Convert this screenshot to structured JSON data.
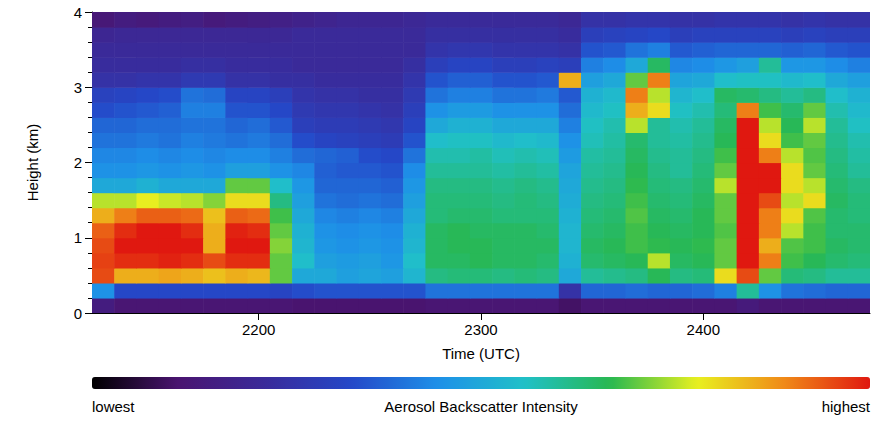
{
  "chart_data": {
    "type": "heatmap",
    "x_label": "Time (UTC)",
    "y_label": "Height (km)",
    "x": [
      2130,
      2140,
      2150,
      2160,
      2170,
      2180,
      2190,
      2200,
      2210,
      2220,
      2230,
      2240,
      2250,
      2260,
      2270,
      2280,
      2290,
      2300,
      2310,
      2320,
      2330,
      2340,
      2350,
      2360,
      2370,
      2380,
      2390,
      2400,
      2410,
      2420,
      2430,
      2440,
      2450,
      2460,
      2470
    ],
    "y": [
      0.1,
      0.3,
      0.5,
      0.7,
      0.9,
      1.1,
      1.3,
      1.5,
      1.7,
      1.9,
      2.1,
      2.3,
      2.5,
      2.7,
      2.9,
      3.1,
      3.3,
      3.5,
      3.7,
      3.9
    ],
    "values": [
      [
        1.5,
        1.2,
        1.2,
        1.2,
        1.2,
        1.2,
        1.2,
        1.2,
        1.2,
        1.1,
        1.1,
        1.1,
        1.1,
        1.1,
        1.1,
        1.2,
        1.2,
        1.2,
        1.2,
        1.2,
        1.2,
        1.0,
        1.2,
        1.2,
        1.2,
        1.2,
        1.2,
        1.2,
        1.2,
        1.4,
        1.2,
        1.2,
        1.2,
        1.2,
        1.2
      ],
      [
        4.5,
        3.3,
        3.3,
        3.3,
        3.3,
        3.3,
        3.3,
        3.3,
        3.2,
        3.4,
        3.5,
        3.5,
        3.5,
        3.5,
        3.5,
        4.0,
        4.0,
        4.0,
        4.0,
        4.0,
        4.0,
        2.5,
        3.8,
        3.8,
        3.9,
        3.8,
        3.8,
        3.9,
        4.2,
        6.0,
        4.5,
        4.0,
        3.9,
        3.8,
        3.8
      ],
      [
        9.5,
        8.5,
        8.5,
        8.6,
        8.5,
        8.3,
        8.5,
        8.4,
        7.0,
        5.0,
        5.0,
        4.8,
        4.9,
        4.8,
        5.3,
        6.2,
        6.3,
        6.3,
        6.2,
        6.3,
        6.2,
        5.0,
        6.0,
        6.1,
        6.2,
        6.6,
        6.2,
        6.3,
        8.0,
        9.5,
        7.0,
        6.3,
        6.2,
        6.0,
        6.0
      ],
      [
        9.6,
        9.8,
        9.8,
        9.9,
        9.8,
        9.5,
        9.8,
        9.8,
        7.0,
        5.5,
        4.8,
        4.7,
        4.8,
        4.6,
        5.5,
        6.5,
        6.5,
        6.6,
        6.5,
        6.5,
        6.4,
        5.2,
        6.4,
        6.5,
        6.6,
        7.5,
        6.5,
        6.6,
        7.0,
        10,
        9.0,
        6.8,
        6.6,
        6.4,
        6.3
      ],
      [
        9.5,
        10,
        10,
        10,
        10,
        8.5,
        10,
        10,
        7.2,
        5.3,
        4.6,
        4.5,
        4.6,
        4.5,
        5.3,
        6.5,
        6.6,
        6.6,
        6.5,
        6.5,
        6.5,
        5.3,
        6.5,
        6.6,
        6.8,
        6.7,
        6.6,
        6.7,
        7.0,
        10,
        8.5,
        6.9,
        6.8,
        6.5,
        6.4
      ],
      [
        9.3,
        9.8,
        10,
        10,
        9.8,
        8.5,
        9.9,
        9.8,
        7.0,
        5.2,
        4.5,
        4.4,
        4.5,
        4.4,
        5.2,
        6.5,
        6.6,
        6.5,
        6.5,
        6.5,
        6.4,
        5.3,
        6.4,
        6.5,
        6.8,
        6.6,
        6.5,
        6.6,
        6.9,
        10,
        9.0,
        7.5,
        6.8,
        6.4,
        6.4
      ],
      [
        8.5,
        9.0,
        9.3,
        9.3,
        9.2,
        8.3,
        9.3,
        9.2,
        6.8,
        5.0,
        4.3,
        4.2,
        4.3,
        4.2,
        5.0,
        6.3,
        6.4,
        6.4,
        6.3,
        6.3,
        6.3,
        5.2,
        6.3,
        6.4,
        6.9,
        6.5,
        6.4,
        6.6,
        7.0,
        10,
        9.0,
        8.0,
        6.9,
        6.4,
        6.3
      ],
      [
        7.5,
        7.5,
        7.8,
        7.6,
        7.5,
        7.2,
        8.0,
        8.0,
        6.2,
        4.8,
        4.0,
        3.9,
        4.0,
        3.9,
        4.8,
        6.3,
        6.3,
        6.3,
        6.2,
        6.3,
        6.2,
        5.1,
        6.2,
        6.3,
        6.8,
        6.4,
        6.3,
        6.5,
        7.0,
        10,
        9.5,
        7.5,
        8.0,
        6.5,
        6.3
      ],
      [
        5.0,
        5.0,
        5.2,
        5.0,
        5.0,
        5.0,
        7.0,
        7.0,
        5.5,
        4.6,
        3.8,
        3.8,
        3.8,
        3.7,
        4.6,
        6.2,
        6.2,
        6.2,
        6.1,
        6.2,
        6.1,
        5.0,
        6.1,
        6.2,
        6.7,
        6.3,
        6.2,
        6.4,
        7.5,
        10,
        10,
        8.0,
        7.5,
        6.4,
        6.2
      ],
      [
        4.5,
        4.5,
        4.6,
        4.5,
        4.6,
        4.5,
        4.8,
        4.8,
        4.5,
        4.3,
        3.7,
        3.6,
        3.6,
        3.5,
        4.4,
        6.0,
        6.0,
        6.0,
        5.9,
        6.0,
        5.9,
        4.9,
        6.0,
        6.1,
        6.6,
        6.2,
        6.0,
        6.3,
        7.0,
        10,
        10,
        8.0,
        7.0,
        6.3,
        6.0
      ],
      [
        4.3,
        4.3,
        4.4,
        4.3,
        4.4,
        4.3,
        4.4,
        4.4,
        4.2,
        3.9,
        3.8,
        3.7,
        3.4,
        3.3,
        4.0,
        5.8,
        5.8,
        5.9,
        5.7,
        5.8,
        5.7,
        4.7,
        5.9,
        6.0,
        6.5,
        6.1,
        6.0,
        6.2,
        6.8,
        10,
        9.0,
        7.5,
        6.9,
        6.2,
        5.9
      ],
      [
        4.0,
        4.0,
        4.1,
        4.0,
        4.2,
        4.1,
        4.0,
        4.1,
        3.9,
        3.4,
        3.2,
        3.1,
        3.0,
        2.9,
        3.5,
        5.5,
        5.6,
        5.6,
        5.4,
        5.5,
        5.4,
        4.5,
        5.7,
        5.9,
        6.4,
        6.0,
        5.9,
        6.1,
        6.6,
        10,
        8.0,
        6.8,
        7.0,
        6.1,
        5.8
      ],
      [
        3.8,
        3.8,
        3.9,
        3.9,
        4.0,
        4.0,
        3.8,
        3.9,
        3.6,
        3.0,
        2.9,
        2.9,
        2.8,
        2.7,
        3.2,
        5.0,
        5.2,
        5.2,
        5.0,
        5.0,
        5.0,
        4.2,
        5.6,
        5.8,
        7.5,
        6.0,
        5.8,
        6.0,
        6.5,
        10,
        7.5,
        6.6,
        7.5,
        6.0,
        5.6
      ],
      [
        3.4,
        3.5,
        3.6,
        3.7,
        4.2,
        4.2,
        3.5,
        3.5,
        3.3,
        2.8,
        2.7,
        2.7,
        2.6,
        2.5,
        3.0,
        4.5,
        4.7,
        4.7,
        4.5,
        4.5,
        4.5,
        3.9,
        5.4,
        5.6,
        8.5,
        8.0,
        5.6,
        5.8,
        6.3,
        9.0,
        6.8,
        6.4,
        7.0,
        5.8,
        5.4
      ],
      [
        3.1,
        3.2,
        3.3,
        3.4,
        4.0,
        3.9,
        3.2,
        3.2,
        3.0,
        2.6,
        2.5,
        2.5,
        2.4,
        2.4,
        2.8,
        4.0,
        4.2,
        4.2,
        4.0,
        4.0,
        4.1,
        3.6,
        5.2,
        5.4,
        9.0,
        7.5,
        5.3,
        5.5,
        6.5,
        6.4,
        6.2,
        6.0,
        6.2,
        5.5,
        5.2
      ],
      [
        2.5,
        2.5,
        2.6,
        2.6,
        2.8,
        2.8,
        2.5,
        2.5,
        2.4,
        2.4,
        2.3,
        2.3,
        2.3,
        2.3,
        2.6,
        3.5,
        3.7,
        3.7,
        3.5,
        3.5,
        3.6,
        8.5,
        4.8,
        5.0,
        7.0,
        9.0,
        4.9,
        5.0,
        5.5,
        5.6,
        5.6,
        5.4,
        5.5,
        5.0,
        4.8
      ],
      [
        2.3,
        2.3,
        2.3,
        2.3,
        2.4,
        2.4,
        2.3,
        2.3,
        2.3,
        2.2,
        2.2,
        2.2,
        2.2,
        2.2,
        2.4,
        3.0,
        3.2,
        3.2,
        3.0,
        3.0,
        3.1,
        3.0,
        4.2,
        4.4,
        5.0,
        6.5,
        4.3,
        4.4,
        4.6,
        4.8,
        6.0,
        4.6,
        4.6,
        4.4,
        4.2
      ],
      [
        2.2,
        2.2,
        2.2,
        2.2,
        2.2,
        2.2,
        2.2,
        2.2,
        2.2,
        2.2,
        2.2,
        2.2,
        2.2,
        2.2,
        2.2,
        2.6,
        2.7,
        2.7,
        2.6,
        2.6,
        2.6,
        2.5,
        3.5,
        3.6,
        4.0,
        4.2,
        3.6,
        3.7,
        3.8,
        3.8,
        3.8,
        3.7,
        3.8,
        3.6,
        3.5
      ],
      [
        2.0,
        2.1,
        2.1,
        2.1,
        2.1,
        2.1,
        2.1,
        2.1,
        2.1,
        2.2,
        2.2,
        2.2,
        2.2,
        2.2,
        2.2,
        2.4,
        2.4,
        2.4,
        2.4,
        2.4,
        2.4,
        2.3,
        3.0,
        3.1,
        3.2,
        3.3,
        3.0,
        3.1,
        3.1,
        3.1,
        3.1,
        3.0,
        3.1,
        3.0,
        3.0
      ],
      [
        1.3,
        1.5,
        1.4,
        1.5,
        1.6,
        1.4,
        1.5,
        1.6,
        1.7,
        1.8,
        1.9,
        2.0,
        2.0,
        2.0,
        2.1,
        2.2,
        2.2,
        2.2,
        2.2,
        2.2,
        2.2,
        2.1,
        2.5,
        2.5,
        2.6,
        2.6,
        2.5,
        2.5,
        2.6,
        2.6,
        2.6,
        2.5,
        2.6,
        2.5,
        2.5
      ]
    ],
    "xlim": [
      2125,
      2475
    ],
    "xticks": [
      2200,
      2300,
      2400
    ],
    "ylim": [
      0,
      4
    ],
    "yticks": [
      0,
      1,
      2,
      3,
      4
    ],
    "grid": false,
    "colorbar": {
      "title": "Aerosol Backscatter Intensity",
      "range": [
        0,
        10
      ],
      "ticks": [
        {
          "value": 0,
          "label": "lowest"
        },
        {
          "value": 10,
          "label": "highest"
        }
      ]
    }
  }
}
